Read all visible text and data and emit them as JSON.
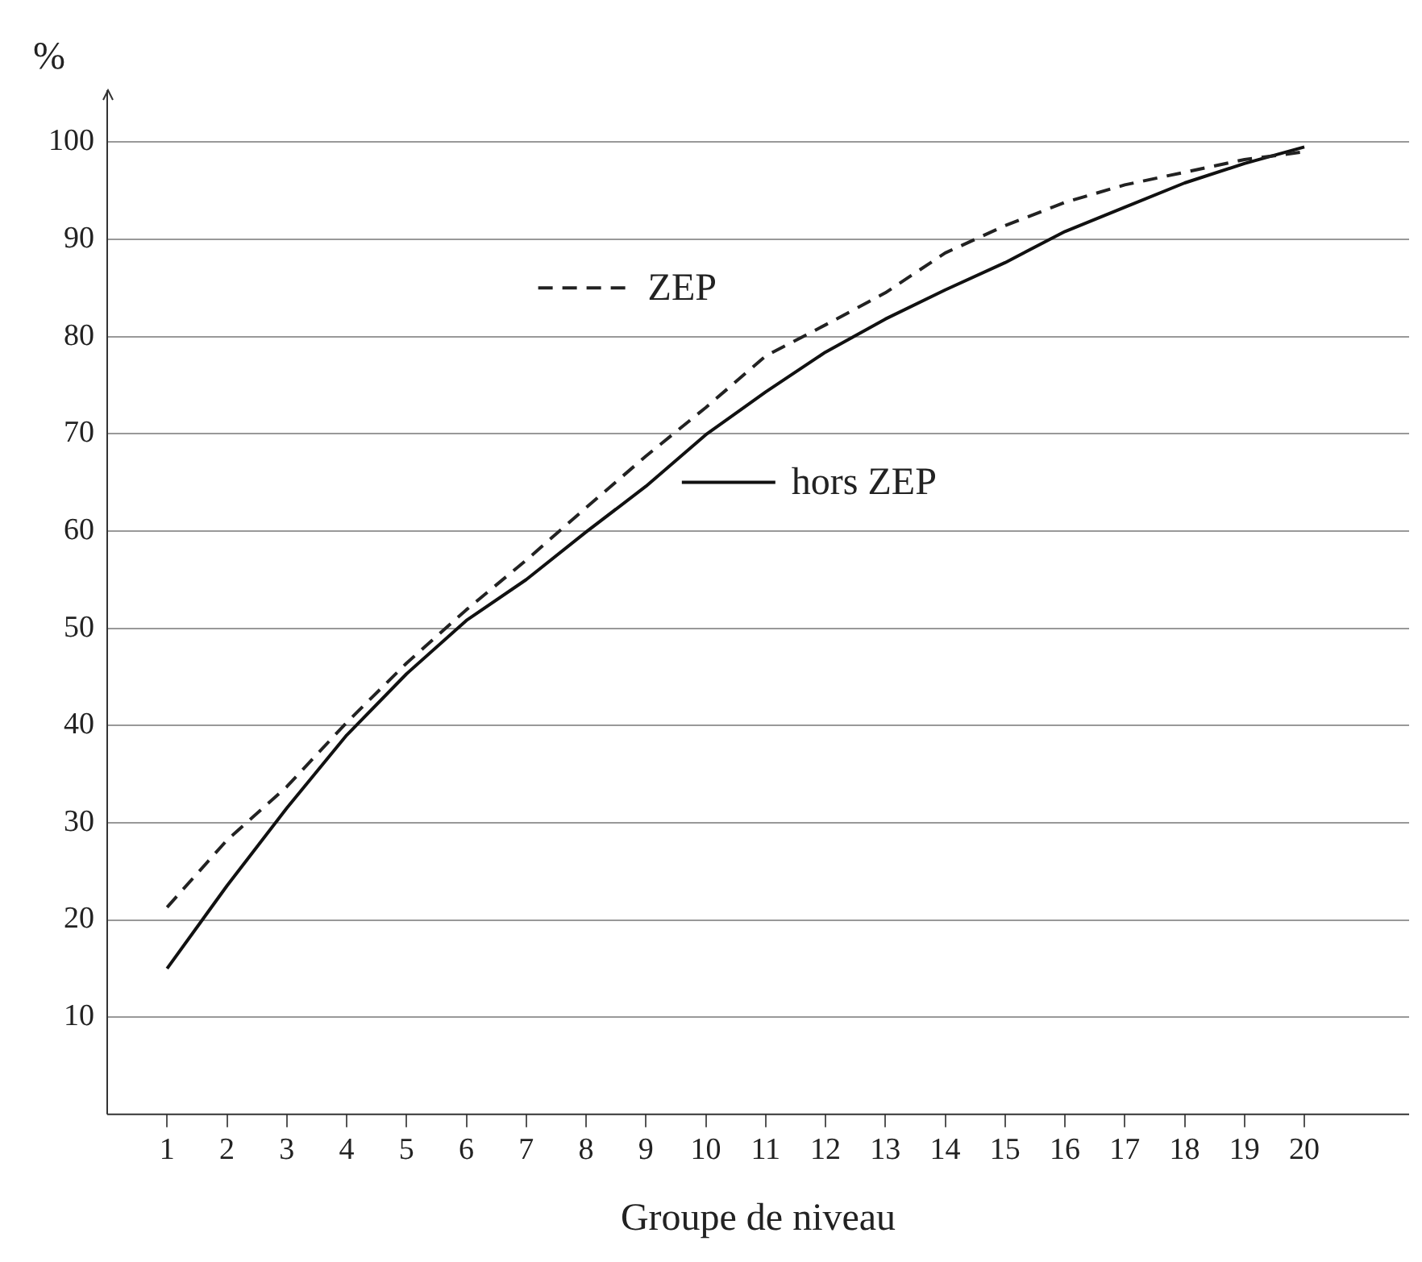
{
  "chart_data": {
    "type": "line",
    "ylabel": "%",
    "xlabel": "Groupe de niveau",
    "x": [
      1,
      2,
      3,
      4,
      5,
      6,
      7,
      8,
      9,
      10,
      11,
      12,
      13,
      14,
      15,
      16,
      17,
      18,
      19,
      20
    ],
    "series": [
      {
        "name": "ZEP",
        "color": "#222222",
        "line_style": "dashed",
        "values": [
          21.3,
          28.2,
          33.7,
          40.3,
          46.4,
          51.9,
          57,
          62.4,
          67.7,
          72.7,
          78,
          81.2,
          84.5,
          88.6,
          91.4,
          93.8,
          95.6,
          96.9,
          98.2,
          99
        ]
      },
      {
        "name": "hors ZEP",
        "color": "#111111",
        "line_style": "solid",
        "values": [
          15,
          23.5,
          31.5,
          39,
          45.3,
          50.8,
          55,
          59.9,
          64.6,
          69.9,
          74.3,
          78.4,
          81.8,
          84.8,
          87.6,
          90.8,
          93.3,
          95.8,
          97.8,
          99.5
        ]
      }
    ],
    "xlim": [
      0,
      21.75
    ],
    "xticks": [
      1,
      2,
      3,
      4,
      5,
      6,
      7,
      8,
      9,
      10,
      11,
      12,
      13,
      14,
      15,
      16,
      17,
      18,
      19,
      20
    ],
    "ylim": [
      0,
      105
    ],
    "yticks": [
      10,
      20,
      30,
      40,
      50,
      60,
      70,
      80,
      90,
      100
    ],
    "grid": "y",
    "legend": "top",
    "marker": "none"
  }
}
